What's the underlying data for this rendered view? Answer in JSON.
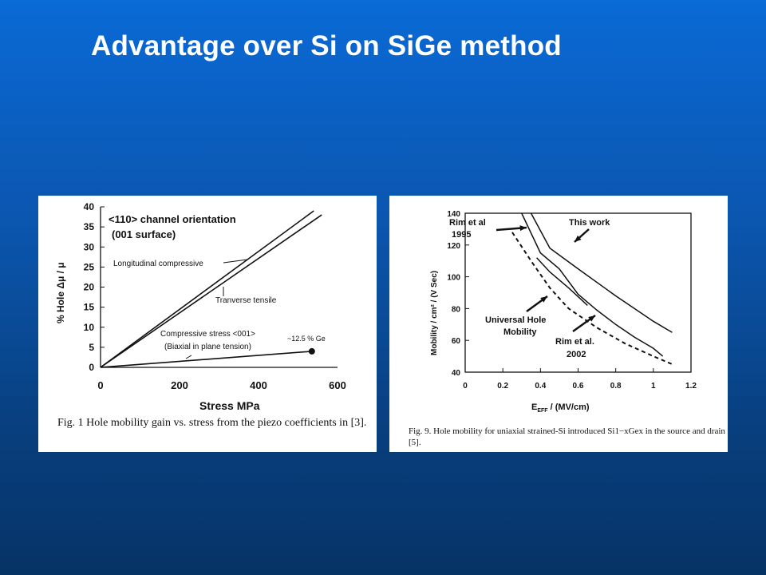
{
  "slide": {
    "title": "Advantage over Si on SiGe method"
  },
  "chart_data": [
    {
      "type": "line",
      "xlabel": "Stress MPa",
      "ylabel": "% Hole Δμ / μ",
      "xlim": [
        0,
        600
      ],
      "ylim": [
        0,
        40
      ],
      "x_ticks": [
        "0",
        "200",
        "400",
        "600"
      ],
      "y_ticks": [
        "0",
        "5",
        "10",
        "15",
        "20",
        "25",
        "30",
        "35",
        "40"
      ],
      "grid": false,
      "annotation_orientation": "<110> channel orientation",
      "annotation_surface": "(001 surface)",
      "series": [
        {
          "name": "Longitudinal compressive",
          "x": [
            0,
            540
          ],
          "y": [
            0,
            39
          ]
        },
        {
          "name": "Tranverse tensile",
          "x": [
            0,
            560
          ],
          "y": [
            0,
            38
          ]
        },
        {
          "name": "Compressive stress <001>",
          "x": [
            0,
            535
          ],
          "y": [
            0,
            4
          ]
        }
      ],
      "annotations": {
        "biaxial": "(Biaxial in plane tension)",
        "ge_point": "~12.5 % Ge"
      },
      "ge_point": {
        "x": 535,
        "y": 4
      },
      "caption": "Fig. 1 Hole mobility gain vs. stress from the piezo coefficients in [3]."
    },
    {
      "type": "line",
      "xlabel_main": "E",
      "xlabel_sub": "EFF",
      "xlabel_unit": " / (MV/cm)",
      "ylabel": "Mobility / cm² / (V Sec)",
      "xlim": [
        0,
        1.2
      ],
      "ylim": [
        40,
        140
      ],
      "x_ticks": [
        "0",
        "0.2",
        "0.4",
        "0.6",
        "0.8",
        "1",
        "1.2"
      ],
      "y_ticks": [
        "40",
        "60",
        "80",
        "100",
        "120",
        "140"
      ],
      "grid": false,
      "series": [
        {
          "name": "This work",
          "x": [
            0.35,
            0.45,
            0.6,
            0.8,
            1.0,
            1.1
          ],
          "y": [
            140,
            118,
            105,
            88,
            72,
            65
          ]
        },
        {
          "name": "Rim et al. 2002",
          "x": [
            0.3,
            0.4,
            0.5,
            0.6,
            0.7,
            0.8,
            0.9,
            1.0,
            1.05
          ],
          "y": [
            140,
            115,
            105,
            89,
            79,
            70,
            62,
            55,
            50
          ]
        },
        {
          "name": "Rim et al 1995",
          "x": [
            0.38,
            0.45,
            0.55,
            0.65
          ],
          "y": [
            112,
            103,
            93,
            82
          ]
        },
        {
          "name": "Universal Hole Mobility",
          "x": [
            0.25,
            0.35,
            0.45,
            0.55,
            0.7,
            0.85,
            1.0,
            1.1
          ],
          "y": [
            128,
            110,
            93,
            80,
            68,
            58,
            50,
            45
          ]
        }
      ],
      "labels": {
        "rim_1995_a": "Rim et al",
        "rim_1995_b": "1995",
        "this_work": "This work",
        "universal_a": "Universal Hole",
        "universal_b": "Mobility",
        "rim_2002_a": "Rim et al.",
        "rim_2002_b": "2002"
      },
      "caption": "Fig. 9.   Hole mobility for uniaxial strained-Si introduced Si1−xGex in the source and drain [5]."
    }
  ]
}
